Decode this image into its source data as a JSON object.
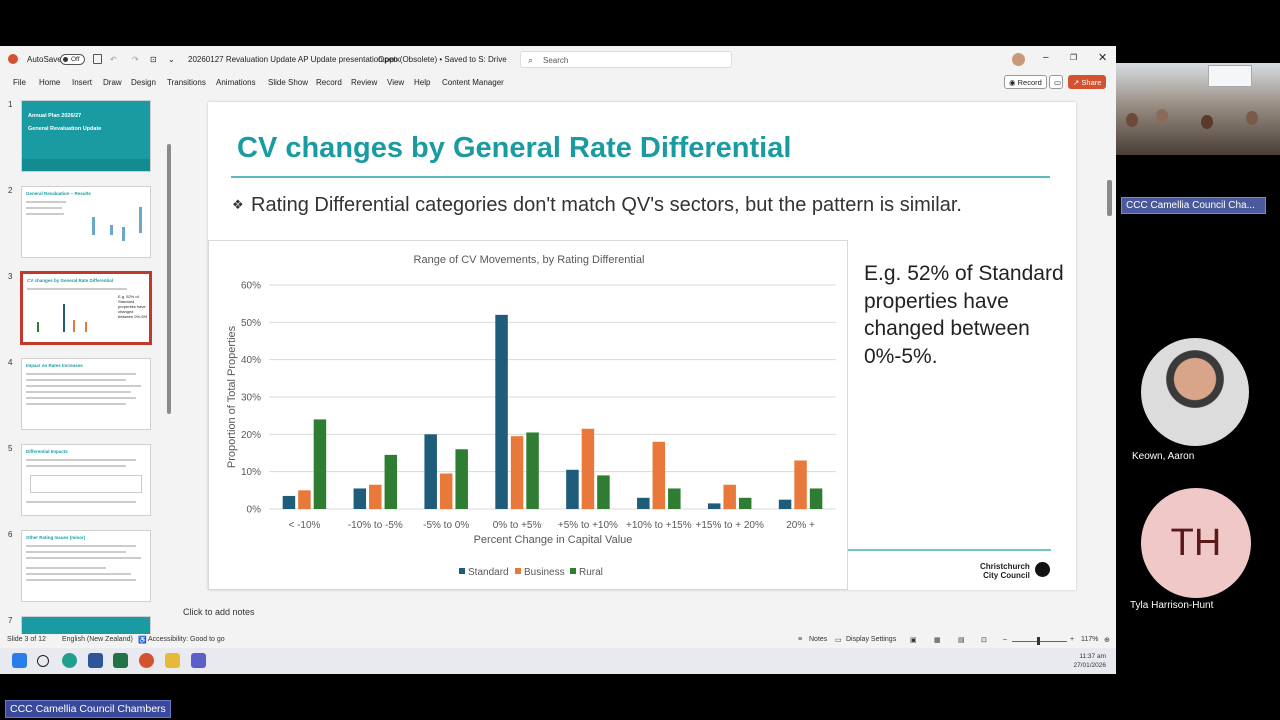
{
  "app": {
    "autosave_label": "AutoSave",
    "autosave_state": "Off",
    "file_title": "20260127 Revaluation Update AP Update presentation.pptx",
    "file_status": "Open (Obsolete) • Saved to S: Drive",
    "search_placeholder": "Search"
  },
  "menu": [
    "File",
    "Home",
    "Insert",
    "Draw",
    "Design",
    "Transitions",
    "Animations",
    "Slide Show",
    "Record",
    "Review",
    "View",
    "Help",
    "Content Manager"
  ],
  "ribbon_right": {
    "record_label": "Record",
    "share_label": "Share"
  },
  "thumbnails": [
    {
      "num": "1",
      "title": "Annual Plan 2026/27"
    },
    {
      "num": "2",
      "title": "General Revaluation – Results"
    },
    {
      "num": "3",
      "title": "CV changes by General Rate Differential"
    },
    {
      "num": "4",
      "title": "Impact on Rates Increases"
    },
    {
      "num": "5",
      "title": "Differential Impacts"
    },
    {
      "num": "6",
      "title": "Other Rating Issues (minor)"
    },
    {
      "num": "7",
      "title": ""
    }
  ],
  "thumb1_sub": "General Revaluation Update",
  "slide": {
    "title": "CV changes by General Rate Differential",
    "bullet": "Rating Differential categories don't match QV's sectors, but the pattern is similar.",
    "callout": "E.g.  52% of Standard properties have changed between 0%-5%.",
    "logo_line1": "Christchurch",
    "logo_line2": "City Council"
  },
  "chart_data": {
    "type": "bar",
    "title": "Range of CV Movements, by Rating Differential",
    "xlabel": "Percent Change in Capital Value",
    "ylabel": "Proportion of Total Properties",
    "ylim": [
      0,
      60
    ],
    "yticks": [
      "0%",
      "10%",
      "20%",
      "30%",
      "40%",
      "50%",
      "60%"
    ],
    "categories": [
      "< -10%",
      "-10% to -5%",
      "-5% to 0%",
      "0% to +5%",
      "+5% to +10%",
      "+10% to +15%",
      "+15% to + 20%",
      "20% +"
    ],
    "series": [
      {
        "name": "Standard",
        "color": "#1f5c7a",
        "values": [
          3.5,
          5.5,
          20,
          52,
          10.5,
          3,
          1.5,
          2.5
        ]
      },
      {
        "name": "Business",
        "color": "#e8793a",
        "values": [
          5,
          6.5,
          9.5,
          19.5,
          21.5,
          18,
          6.5,
          13
        ]
      },
      {
        "name": "Rural",
        "color": "#2e7d32",
        "values": [
          24,
          14.5,
          16,
          20.5,
          9,
          5.5,
          3,
          5.5
        ]
      }
    ],
    "grid": true,
    "legend_position": "bottom"
  },
  "notes_placeholder": "Click to add notes",
  "status": {
    "slide_info": "Slide 3 of 12",
    "language": "English (New Zealand)",
    "accessibility": "Accessibility: Good to go",
    "notes": "Notes",
    "display": "Display Settings",
    "zoom": "117%"
  },
  "clock": {
    "time": "11:37 am",
    "date": "27/01/2026"
  },
  "participants": {
    "chamber_label": "CCC Camellia Council Cha...",
    "p1_name": "Keown, Aaron",
    "p2_initials": "TH",
    "p2_name": "Tyla Harrison-Hunt"
  },
  "footer_badge": "CCC Camellia Council Chambers"
}
